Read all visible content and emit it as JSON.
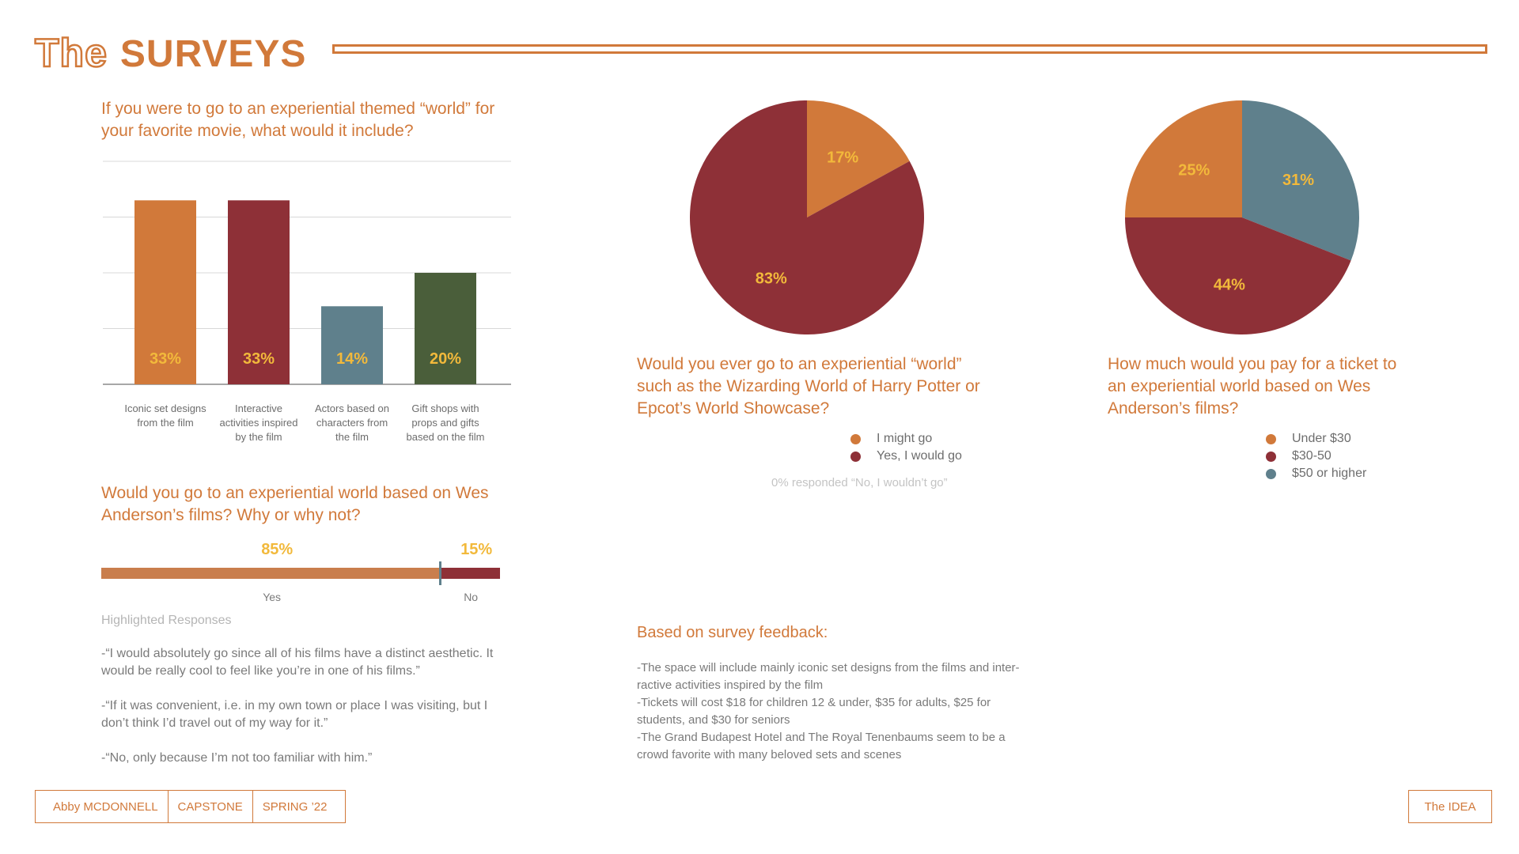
{
  "header": {
    "title_prefix": "The",
    "title_main": "SURVEYS"
  },
  "q1": {
    "question": "If you were to go to an experiential themed “world” for your favorite movie, what would it include?"
  },
  "q2": {
    "question": "Would you go to an experiential world based on Wes Anderson’s films? Why or why not?",
    "yes_pct": "85%",
    "no_pct": "15%",
    "yes_label": "Yes",
    "no_label": "No",
    "yes_value": 85,
    "no_value": 15,
    "highlight_heading": "Highlighted Responses",
    "responses": [
      "-“I would absolutely go since all of his films have a distinct aesthetic. It would be really cool to feel like you’re in one of his films.”",
      "-“If it was convenient, i.e. in my own town or place I was visiting, but I don’t think I’d travel out of my way for it.”",
      "-“No, only because I’m not too familiar with him.”"
    ]
  },
  "q3": {
    "question": "Would you ever go to an experiential “world” such as the Wizarding World of Harry Potter or Epcot’s World Showcase?",
    "note": "0%  responded “No, I wouldn’t go”"
  },
  "q4": {
    "question": "How much would you pay for a ticket to an experiential world based on Wes Anderson’s films?"
  },
  "feedback": {
    "heading": "Based on survey feedback:",
    "lines": [
      "-The space will include mainly iconic set designs from the films and inter-",
      "ractive activities inspired by the film",
      "-Tickets will cost $18 for children 12 & under, $35 for adults, $25 for",
      "students, and $30 for seniors",
      "-The Grand Budapest Hotel and The Royal Tenenbaums seem to be a",
      "crowd favorite with many beloved sets and scenes"
    ]
  },
  "footer": {
    "author": "Abby MCDONNELL",
    "course": "CAPSTONE",
    "term": "SPRING ’22",
    "section": "The IDEA"
  },
  "colors": {
    "orange": "#d1793a",
    "red": "#8e3037",
    "blue": "#5f808c",
    "green": "#4a5e3a",
    "yellow": "#f2b93b"
  },
  "chart_data": [
    {
      "type": "bar",
      "categories": [
        "Iconic set designs from the film",
        "Interactive activities inspired by the film",
        "Actors based on characters from the film",
        "Gift shops with props and gifts based on the film"
      ],
      "values": [
        33,
        33,
        14,
        20
      ],
      "labels": [
        "33%",
        "33%",
        "14%",
        "20%"
      ],
      "colors": [
        "#d1793a",
        "#8e3037",
        "#5f808c",
        "#4a5e3a"
      ],
      "ylim": [
        0,
        40
      ],
      "grid": true
    },
    {
      "type": "pie",
      "categories": [
        "I might go",
        "Yes, I would go"
      ],
      "values": [
        17,
        83
      ],
      "labels": [
        "17%",
        "83%"
      ],
      "colors": [
        "#d1793a",
        "#8e3037"
      ],
      "legend": "bottom"
    },
    {
      "type": "pie",
      "categories": [
        "Under $30",
        "$30-50",
        "$50 or higher"
      ],
      "values": [
        25,
        44,
        31
      ],
      "labels": [
        "25%",
        "44%",
        "31%"
      ],
      "colors": [
        "#d1793a",
        "#8e3037",
        "#5f808c"
      ],
      "order": [
        2,
        1,
        0
      ],
      "legend": "bottom"
    }
  ]
}
